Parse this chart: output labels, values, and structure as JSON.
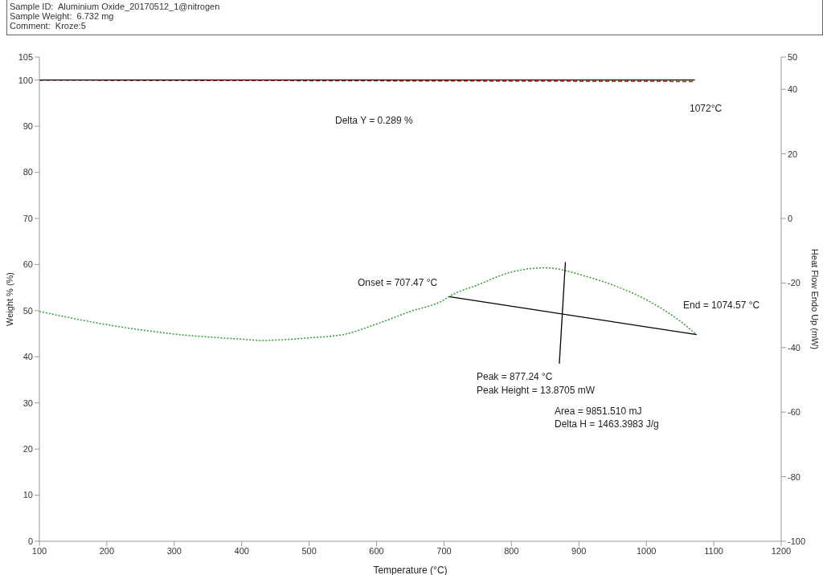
{
  "chart_data": {
    "type": "line",
    "xlabel": "Temperature (°C)",
    "ylabel": "Weight % (%)",
    "y2label": "Heat Flow Endo Up (mW)",
    "xlim": [
      100,
      1200
    ],
    "xticks": [
      100,
      200,
      300,
      400,
      500,
      600,
      700,
      800,
      900,
      1000,
      1100,
      1200
    ],
    "ylim": [
      0,
      105
    ],
    "yticks": [
      0,
      10,
      20,
      30,
      40,
      50,
      60,
      70,
      80,
      90,
      100,
      105
    ],
    "y2lim": [
      -100,
      50
    ],
    "y2ticks": [
      -100,
      -80,
      -60,
      -40,
      -20,
      0,
      20,
      40,
      50
    ],
    "marker": "none",
    "series": [
      {
        "color": "#ff0000",
        "line_style": "dashed",
        "x": [
          100,
          1072
        ],
        "values": [
          100,
          99.7
        ]
      },
      {
        "color": "#000000",
        "line_style": "solid",
        "x": [
          100,
          1072
        ],
        "values": [
          100,
          100
        ]
      },
      {
        "color": "#339933",
        "line_style": "dotted",
        "axis": "y2",
        "x": [
          100,
          200,
          300,
          400,
          430,
          500,
          550,
          600,
          650,
          700,
          707.47,
          750,
          800,
          850,
          877,
          900,
          950,
          1000,
          1050,
          1074.57
        ],
        "values": [
          -28.8,
          -32.9,
          -35.8,
          -37.4,
          -37.8,
          -37,
          -36,
          -32.7,
          -28.8,
          -25.2,
          -24.2,
          -20.6,
          -16.6,
          -15.3,
          -16,
          -17.3,
          -20.6,
          -25.2,
          -31.8,
          -36
        ]
      },
      {
        "color": "#000000",
        "line_style": "solid",
        "axis": "y2",
        "x": [
          707.47,
          1074.57
        ],
        "values": [
          -24.2,
          -36
        ]
      },
      {
        "color": "#000000",
        "line_style": "solid",
        "axis": "y2",
        "x": [
          880,
          871
        ],
        "values": [
          -13.5,
          -45
        ]
      }
    ],
    "annotations": [
      "Sample ID:  Aluminium Oxide_20170512_1@nitrogen",
      "Sample Weight:  6.732 mg",
      "Comment:  Kroze:5",
      "Delta Y = 0.289 %",
      "1072°C",
      "Onset = 707.47 °C",
      "Peak = 877.24 °C",
      "Peak Height = 13.8705 mW",
      "Area = 9851.510 mJ",
      "Delta H = 1463.3983 J/g",
      "End = 1074.57 °C"
    ]
  }
}
